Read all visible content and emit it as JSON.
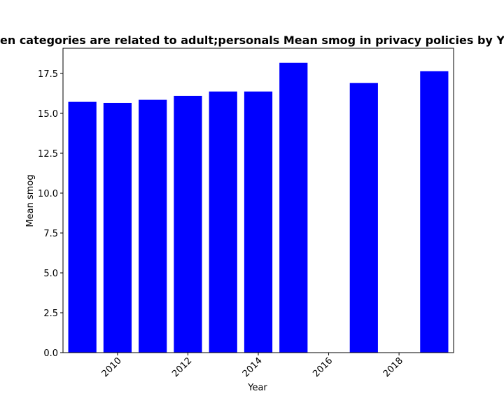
{
  "chart_data": {
    "type": "bar",
    "title": "When categories are related to adult;personals Mean smog in privacy policies by Year",
    "xlabel": "Year",
    "ylabel": "Mean smog",
    "x": [
      2009,
      2010,
      2011,
      2012,
      2013,
      2014,
      2015,
      2017,
      2019
    ],
    "values": [
      15.72,
      15.66,
      15.85,
      16.1,
      16.37,
      16.37,
      18.17,
      16.9,
      17.64
    ],
    "xlim": [
      2008.45,
      2019.55
    ],
    "ylim": [
      0,
      19.08
    ],
    "xticks": [
      2010,
      2012,
      2014,
      2016,
      2018
    ],
    "xtick_labels": [
      "2010",
      "2012",
      "2014",
      "2016",
      "2018"
    ],
    "yticks": [
      0,
      2.5,
      5,
      7.5,
      10,
      12.5,
      15,
      17.5
    ],
    "ytick_labels": [
      "0.0",
      "2.5",
      "5.0",
      "7.5",
      "10.0",
      "12.5",
      "15.0",
      "17.5"
    ],
    "bar_color": "#0000ff",
    "grid": false,
    "legend": "none"
  }
}
